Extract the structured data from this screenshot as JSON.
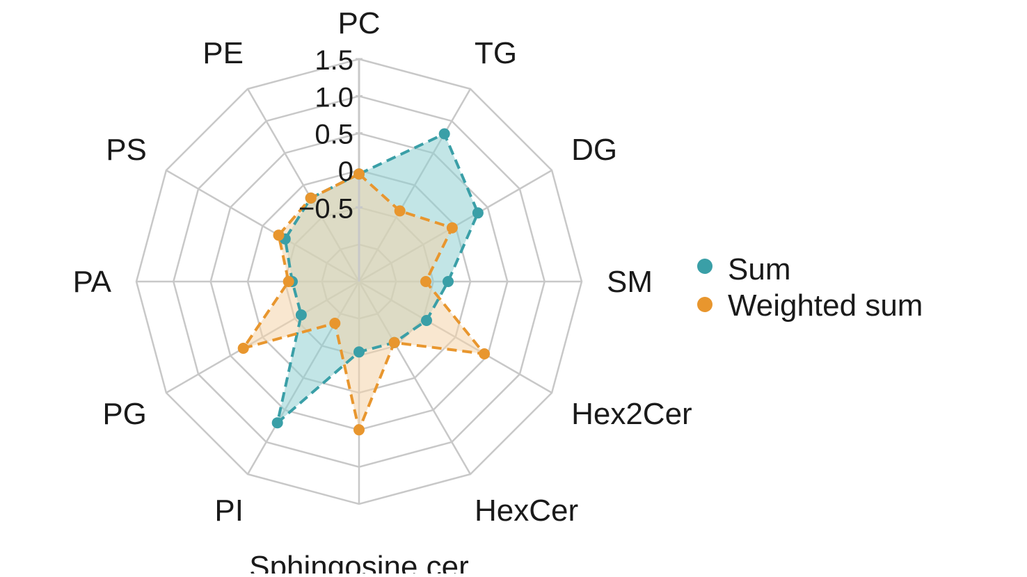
{
  "chart_data": {
    "type": "radar",
    "title": "",
    "categories": [
      "PC",
      "TG",
      "DG",
      "SM",
      "Hex2Cer",
      "HexCer",
      "Sphingosine cer",
      "PI",
      "PG",
      "PA",
      "PS",
      "PE"
    ],
    "rlim": [
      -1.5,
      1.5
    ],
    "ticks": [
      "1.5",
      "1.0",
      "0.5",
      "0",
      "−0.5"
    ],
    "tick_values": [
      1.5,
      1.0,
      0.5,
      0,
      -0.5
    ],
    "grid": true,
    "legend_position": "right",
    "series": [
      {
        "name": "Sum",
        "color": "#3a9fa7",
        "fill": "#8fd0d2",
        "values": [
          -0.05,
          0.8,
          0.35,
          -0.3,
          -0.45,
          -0.55,
          -0.55,
          0.7,
          -0.6,
          -0.6,
          -0.35,
          -0.2
        ]
      },
      {
        "name": "Weighted sum",
        "color": "#e8962e",
        "fill": "#f4d4aa",
        "values": [
          -0.05,
          -0.4,
          -0.05,
          -0.6,
          0.45,
          -0.55,
          0.5,
          -0.85,
          0.3,
          -0.55,
          -0.25,
          -0.2
        ]
      }
    ]
  },
  "legend": {
    "items": [
      {
        "label": "Sum",
        "color": "#3a9fa7"
      },
      {
        "label": "Weighted sum",
        "color": "#e8962e"
      }
    ]
  }
}
